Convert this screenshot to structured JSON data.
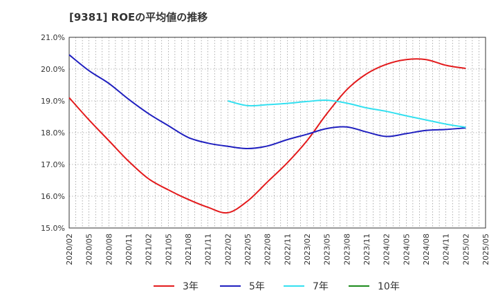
{
  "chart_data": {
    "type": "line",
    "title": "[9381]  ROEの平均値の推移",
    "xlabel": "",
    "ylabel": "",
    "ylim": [
      15.0,
      21.0
    ],
    "yticks": [
      "15.0%",
      "16.0%",
      "17.0%",
      "18.0%",
      "19.0%",
      "20.0%",
      "21.0%"
    ],
    "ytick_values": [
      15,
      16,
      17,
      18,
      19,
      20,
      21
    ],
    "xticks": [
      "2020/02",
      "2020/05",
      "2020/08",
      "2020/11",
      "2021/02",
      "2021/05",
      "2021/08",
      "2021/11",
      "2022/02",
      "2022/05",
      "2022/08",
      "2022/11",
      "2023/02",
      "2023/05",
      "2023/08",
      "2023/11",
      "2024/02",
      "2024/05",
      "2024/08",
      "2024/11",
      "2025/02",
      "2025/05"
    ],
    "grid": true,
    "legend_position": "bottom",
    "x_months": [
      "2020/02",
      "2020/05",
      "2020/08",
      "2020/11",
      "2021/02",
      "2021/05",
      "2021/08",
      "2021/11",
      "2022/02",
      "2022/05",
      "2022/08",
      "2022/11",
      "2023/02",
      "2023/05",
      "2023/08",
      "2023/11",
      "2024/02",
      "2024/05",
      "2024/08",
      "2024/11",
      "2025/02"
    ],
    "series": [
      {
        "name": "3年",
        "color": "#e31a1c",
        "values": [
          19.1,
          18.4,
          17.75,
          17.1,
          16.55,
          16.2,
          15.9,
          15.65,
          15.48,
          15.85,
          16.45,
          17.05,
          17.75,
          18.6,
          19.35,
          19.85,
          20.15,
          20.3,
          20.3,
          20.12,
          20.02
        ]
      },
      {
        "name": "5年",
        "color": "#1f1fbf",
        "values": [
          20.45,
          19.95,
          19.55,
          19.05,
          18.6,
          18.22,
          17.85,
          17.67,
          17.57,
          17.5,
          17.58,
          17.78,
          17.95,
          18.13,
          18.18,
          18.02,
          17.88,
          17.97,
          18.07,
          18.1,
          18.15
        ]
      },
      {
        "name": "7年",
        "color": "#33e0f0",
        "values": [
          null,
          null,
          null,
          null,
          null,
          null,
          null,
          null,
          19.0,
          18.85,
          18.88,
          18.92,
          18.98,
          19.02,
          18.93,
          18.78,
          18.67,
          18.53,
          18.4,
          18.27,
          18.17
        ]
      },
      {
        "name": "10年",
        "color": "#1a8a1a",
        "values": [
          null,
          null,
          null,
          null,
          null,
          null,
          null,
          null,
          null,
          null,
          null,
          null,
          null,
          null,
          null,
          null,
          null,
          null,
          null,
          null,
          null
        ]
      }
    ]
  }
}
